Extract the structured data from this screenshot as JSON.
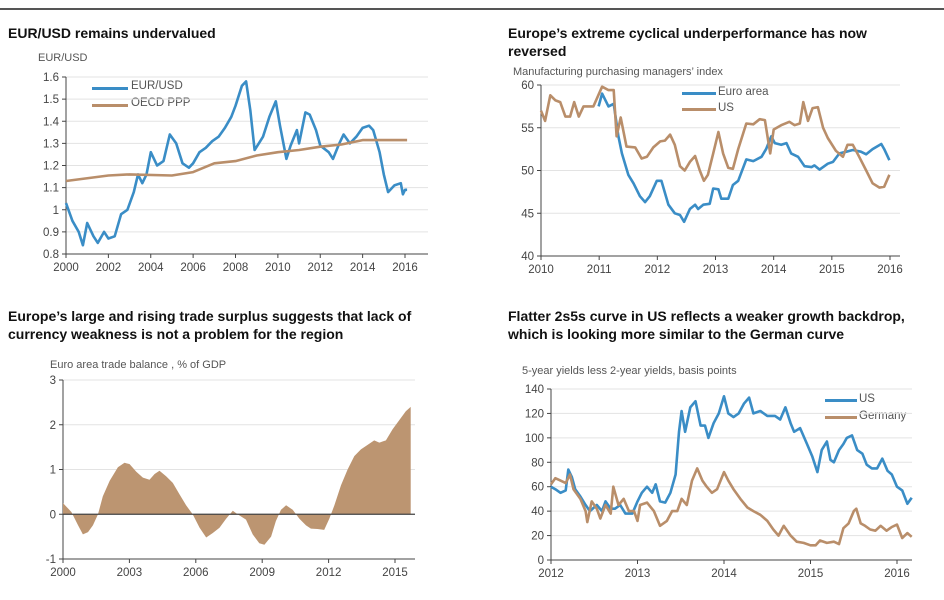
{
  "colors": {
    "blue": "#3a8dc6",
    "tan": "#b98e6a",
    "area": "#bc9571",
    "grid": "#e3e3e3",
    "axis": "#444"
  },
  "charts": {
    "c1": {
      "title": "EUR/USD remains undervalued",
      "ylabel": "EUR/USD"
    },
    "c2": {
      "title_line1": "Europe’s extreme cyclical underperformance has now",
      "title_line2": "reversed",
      "subtitle": "Manufacturing purchasing managers’ index"
    },
    "c3": {
      "title_line1": "Europe’s large and rising trade surplus suggests that lack of",
      "title_line2": "currency weakness is not a problem for the region",
      "subtitle": "Euro area trade balance , % of GDP"
    },
    "c4": {
      "title_line1": "Flatter 2s5s curve in US reflects a weaker growth backdrop,",
      "title_line2": "which is looking more similar to the German curve",
      "subtitle": "5-year yields less 2-year yields, basis points"
    }
  },
  "chart_data": [
    {
      "type": "line",
      "title": "EUR/USD remains undervalued",
      "ylabel": "EUR/USD",
      "xlim": [
        2000,
        2016
      ],
      "ylim": [
        0.8,
        1.6
      ],
      "xticks": [
        2000,
        2002,
        2004,
        2006,
        2008,
        2010,
        2012,
        2014,
        2016
      ],
      "yticks": [
        0.8,
        0.9,
        1,
        1.1,
        1.2,
        1.3,
        1.4,
        1.5,
        1.6
      ],
      "grid": true,
      "legend": "top-left",
      "series": [
        {
          "name": "EUR/USD",
          "color": "#3a8dc6",
          "x": [
            2000,
            2000.3,
            2000.6,
            2000.8,
            2001.0,
            2001.3,
            2001.5,
            2001.8,
            2002.0,
            2002.3,
            2002.6,
            2002.9,
            2003.2,
            2003.4,
            2003.6,
            2003.8,
            2004.0,
            2004.3,
            2004.6,
            2004.9,
            2005.2,
            2005.5,
            2005.8,
            2006.0,
            2006.3,
            2006.6,
            2006.9,
            2007.2,
            2007.5,
            2007.8,
            2008.0,
            2008.3,
            2008.5,
            2008.7,
            2008.9,
            2009.1,
            2009.3,
            2009.6,
            2009.9,
            2010.1,
            2010.4,
            2010.6,
            2010.9,
            2011.0,
            2011.3,
            2011.5,
            2011.8,
            2012.0,
            2012.4,
            2012.6,
            2012.9,
            2013.1,
            2013.4,
            2013.7,
            2014.0,
            2014.3,
            2014.5,
            2014.8,
            2015.0,
            2015.2,
            2015.5,
            2015.8,
            2015.9,
            2016.0,
            2016.1
          ],
          "y": [
            1.03,
            0.95,
            0.9,
            0.84,
            0.94,
            0.88,
            0.85,
            0.9,
            0.87,
            0.88,
            0.98,
            1.0,
            1.08,
            1.16,
            1.12,
            1.16,
            1.26,
            1.2,
            1.22,
            1.34,
            1.3,
            1.21,
            1.19,
            1.21,
            1.26,
            1.28,
            1.31,
            1.33,
            1.37,
            1.42,
            1.47,
            1.56,
            1.58,
            1.45,
            1.27,
            1.3,
            1.33,
            1.42,
            1.49,
            1.38,
            1.23,
            1.29,
            1.36,
            1.3,
            1.44,
            1.43,
            1.36,
            1.29,
            1.26,
            1.23,
            1.3,
            1.34,
            1.3,
            1.33,
            1.37,
            1.38,
            1.36,
            1.26,
            1.16,
            1.08,
            1.11,
            1.12,
            1.07,
            1.09,
            1.09
          ]
        },
        {
          "name": "OECD PPP",
          "color": "#b98e6a",
          "x": [
            2000,
            2002,
            2003,
            2005,
            2006,
            2007,
            2008,
            2009,
            2010,
            2011,
            2012,
            2013,
            2014,
            2016.1
          ],
          "y": [
            1.13,
            1.155,
            1.16,
            1.155,
            1.17,
            1.21,
            1.22,
            1.245,
            1.26,
            1.27,
            1.285,
            1.295,
            1.315,
            1.315
          ]
        }
      ]
    },
    {
      "type": "line",
      "title": "Europe’s extreme cyclical underperformance has now reversed",
      "subtitle": "Manufacturing purchasing managers’ index",
      "xlim": [
        2010,
        2016
      ],
      "ylim": [
        40,
        60
      ],
      "xticks": [
        2010,
        2011,
        2012,
        2013,
        2014,
        2015,
        2016
      ],
      "yticks": [
        40,
        45,
        50,
        55,
        60
      ],
      "grid": true,
      "legend": "top-center",
      "series": [
        {
          "name": "Euro area",
          "color": "#3a8dc6",
          "x": [
            2010.99,
            2011.05,
            2011.16,
            2011.25,
            2011.33,
            2011.39,
            2011.5,
            2011.59,
            2011.7,
            2011.79,
            2011.87,
            2011.99,
            2012.07,
            2012.19,
            2012.3,
            2012.39,
            2012.46,
            2012.56,
            2012.65,
            2012.7,
            2012.79,
            2012.9,
            2012.96,
            2013.05,
            2013.1,
            2013.22,
            2013.3,
            2013.39,
            2013.53,
            2013.65,
            2013.79,
            2013.87,
            2013.96,
            2014.02,
            2014.13,
            2014.22,
            2014.3,
            2014.42,
            2014.53,
            2014.65,
            2014.7,
            2014.79,
            2014.93,
            2015.02,
            2015.13,
            2015.25,
            2015.36,
            2015.5,
            2015.59,
            2015.7,
            2015.85,
            2015.9,
            2015.99
          ],
          "y": [
            57.5,
            59,
            57.5,
            57.8,
            54,
            52,
            49.5,
            48.5,
            47,
            46.3,
            47,
            48.8,
            48.8,
            46,
            45,
            44.8,
            44,
            45.5,
            46,
            45.5,
            46,
            46.1,
            47.9,
            47.8,
            46.7,
            46.7,
            48.3,
            48.8,
            51.3,
            51.1,
            51.6,
            52.5,
            54,
            53.2,
            53,
            53.2,
            52,
            51.6,
            50.5,
            50.4,
            50.6,
            50.1,
            50.8,
            51,
            52,
            52.2,
            52.4,
            52.2,
            51.9,
            52.5,
            53.1,
            52.5,
            51.2
          ]
        },
        {
          "name": "US",
          "color": "#b98e6a",
          "x": [
            2010,
            2010.07,
            2010.16,
            2010.25,
            2010.33,
            2010.42,
            2010.5,
            2010.57,
            2010.65,
            2010.73,
            2010.9,
            2011.05,
            2011.16,
            2011.25,
            2011.3,
            2011.37,
            2011.47,
            2011.62,
            2011.73,
            2011.82,
            2011.93,
            2012.05,
            2012.13,
            2012.22,
            2012.3,
            2012.39,
            2012.47,
            2012.56,
            2012.65,
            2012.73,
            2012.8,
            2012.87,
            2012.96,
            2013.05,
            2013.13,
            2013.22,
            2013.3,
            2013.39,
            2013.53,
            2013.65,
            2013.76,
            2013.85,
            2013.94,
            2014.0,
            2014.13,
            2014.27,
            2014.36,
            2014.45,
            2014.51,
            2014.59,
            2014.67,
            2014.76,
            2014.85,
            2014.93,
            2015.07,
            2015.19,
            2015.27,
            2015.36,
            2015.47,
            2015.59,
            2015.7,
            2015.82,
            2015.9,
            2015.99
          ],
          "y": [
            57,
            55.8,
            58.8,
            58.2,
            58,
            56.3,
            56.3,
            58,
            56.3,
            57.5,
            57.5,
            59.8,
            59.4,
            59.4,
            54,
            56.2,
            52.8,
            52.7,
            51.4,
            51.6,
            52.7,
            53.4,
            53.5,
            54.2,
            53,
            50.5,
            50,
            51,
            51.7,
            50,
            48.8,
            49.5,
            52,
            54.5,
            52,
            50.3,
            50.2,
            52.5,
            55.5,
            55.4,
            56,
            55.9,
            52,
            54.8,
            55.3,
            55.7,
            55.3,
            55.5,
            58,
            55.8,
            57.3,
            57.4,
            55,
            53.8,
            52.3,
            51.6,
            53,
            53,
            51.6,
            50,
            48.5,
            48,
            48.1,
            49.5
          ]
        }
      ]
    },
    {
      "type": "area",
      "title": "Europe’s large and rising trade surplus suggests that lack of currency weakness is not a problem for the region",
      "subtitle": "Euro area trade balance , % of GDP",
      "xlim": [
        2000,
        2016
      ],
      "ylim": [
        -1,
        3
      ],
      "xticks": [
        2000,
        2003,
        2006,
        2009,
        2012,
        2015
      ],
      "yticks": [
        -1,
        0,
        1,
        2,
        3
      ],
      "grid": true,
      "series": [
        {
          "color": "#bc9571",
          "x": [
            2000,
            2000.38,
            2000.68,
            2000.9,
            2001.13,
            2001.35,
            2001.58,
            2001.8,
            2002.11,
            2002.48,
            2002.78,
            2003.01,
            2003.31,
            2003.61,
            2003.91,
            2004.14,
            2004.36,
            2004.66,
            2004.96,
            2005.26,
            2005.56,
            2005.86,
            2006.17,
            2006.47,
            2006.77,
            2007.07,
            2007.37,
            2007.67,
            2007.89,
            2008.27,
            2008.57,
            2008.87,
            2009.1,
            2009.4,
            2009.62,
            2009.85,
            2010.08,
            2010.38,
            2010.68,
            2010.98,
            2011.2,
            2011.5,
            2011.8,
            2012.03,
            2012.26,
            2012.56,
            2012.86,
            2013.16,
            2013.46,
            2013.76,
            2014.06,
            2014.29,
            2014.59,
            2014.89,
            2015.19,
            2015.49,
            2015.71
          ],
          "y": [
            0.25,
            0.05,
            -0.25,
            -0.45,
            -0.4,
            -0.25,
            0,
            0.4,
            0.75,
            1.05,
            1.15,
            1.12,
            0.95,
            0.82,
            0.77,
            0.9,
            0.97,
            0.85,
            0.7,
            0.45,
            0.2,
            0,
            -0.3,
            -0.52,
            -0.42,
            -0.3,
            -0.1,
            0.08,
            0,
            -0.12,
            -0.45,
            -0.65,
            -0.68,
            -0.5,
            -0.15,
            0.1,
            0.2,
            0.1,
            -0.1,
            -0.25,
            -0.32,
            -0.33,
            -0.35,
            -0.1,
            0.2,
            0.65,
            1.0,
            1.3,
            1.45,
            1.55,
            1.65,
            1.6,
            1.65,
            1.9,
            2.1,
            2.3,
            2.4
          ]
        }
      ]
    },
    {
      "type": "line",
      "title": "Flatter 2s5s curve in US reflects a weaker growth backdrop, which is looking more similar to the German curve",
      "subtitle": "5-year yields less 2-year yields, basis points",
      "xlim": [
        2012,
        2016.2
      ],
      "ylim": [
        0,
        140
      ],
      "xticks": [
        2012,
        2013,
        2014,
        2015,
        2016
      ],
      "yticks": [
        0,
        20,
        40,
        60,
        80,
        100,
        120,
        140
      ],
      "grid": true,
      "legend": "top-right",
      "series": [
        {
          "name": "US",
          "color": "#3a8dc6",
          "x": [
            2012,
            2012.05,
            2012.11,
            2012.17,
            2012.2,
            2012.24,
            2012.28,
            2012.34,
            2012.4,
            2012.45,
            2012.53,
            2012.59,
            2012.63,
            2012.69,
            2012.74,
            2012.8,
            2012.86,
            2012.94,
            2013,
            2013.05,
            2013.11,
            2013.17,
            2013.21,
            2013.26,
            2013.32,
            2013.38,
            2013.44,
            2013.48,
            2013.51,
            2013.55,
            2013.61,
            2013.67,
            2013.73,
            2013.78,
            2013.82,
            2013.88,
            2013.94,
            2014,
            2014.05,
            2014.11,
            2014.17,
            2014.23,
            2014.29,
            2014.34,
            2014.42,
            2014.5,
            2014.59,
            2014.65,
            2014.71,
            2014.77,
            2014.81,
            2014.88,
            2014.96,
            2015.02,
            2015.08,
            2015.13,
            2015.19,
            2015.23,
            2015.27,
            2015.33,
            2015.38,
            2015.42,
            2015.48,
            2015.54,
            2015.6,
            2015.65,
            2015.71,
            2015.77,
            2015.83,
            2015.89,
            2015.94,
            2016,
            2016.06,
            2016.12,
            2016.17
          ],
          "y": [
            60,
            58,
            55,
            57,
            74,
            68,
            58,
            52,
            45,
            40,
            45,
            40,
            48,
            42,
            42,
            45,
            38,
            38,
            48,
            55,
            60,
            55,
            62,
            48,
            47,
            55,
            70,
            105,
            122,
            105,
            125,
            130,
            110,
            110,
            100,
            112,
            120,
            134,
            120,
            117,
            120,
            128,
            133,
            120,
            122,
            118,
            118,
            115,
            125,
            112,
            105,
            108,
            95,
            85,
            72,
            90,
            97,
            82,
            80,
            90,
            95,
            100,
            102,
            90,
            87,
            78,
            75,
            75,
            83,
            73,
            70,
            60,
            57,
            46,
            51
          ]
        },
        {
          "name": "Germany",
          "color": "#b98e6a",
          "x": [
            2012,
            2012.05,
            2012.11,
            2012.17,
            2012.22,
            2012.26,
            2012.34,
            2012.4,
            2012.42,
            2012.47,
            2012.53,
            2012.57,
            2012.63,
            2012.69,
            2012.72,
            2012.78,
            2012.84,
            2012.9,
            2012.96,
            2013,
            2013.03,
            2013.11,
            2013.19,
            2013.26,
            2013.34,
            2013.4,
            2013.46,
            2013.51,
            2013.57,
            2013.63,
            2013.69,
            2013.75,
            2013.8,
            2013.86,
            2013.92,
            2014,
            2014.05,
            2014.11,
            2014.19,
            2014.27,
            2014.34,
            2014.42,
            2014.5,
            2014.57,
            2014.63,
            2014.69,
            2014.77,
            2014.84,
            2014.92,
            2015,
            2015.06,
            2015.11,
            2015.19,
            2015.27,
            2015.33,
            2015.38,
            2015.44,
            2015.5,
            2015.53,
            2015.58,
            2015.63,
            2015.69,
            2015.75,
            2015.81,
            2015.88,
            2015.94,
            2016,
            2016.06,
            2016.12,
            2016.17
          ],
          "y": [
            62,
            67,
            65,
            63,
            70,
            58,
            50,
            40,
            31,
            48,
            42,
            34,
            45,
            38,
            60,
            45,
            50,
            40,
            40,
            32,
            45,
            47,
            40,
            28,
            32,
            40,
            40,
            50,
            45,
            65,
            75,
            65,
            60,
            55,
            58,
            72,
            65,
            58,
            50,
            43,
            40,
            37,
            32,
            25,
            20,
            28,
            20,
            15,
            14,
            12,
            12,
            16,
            14,
            15,
            13,
            26,
            30,
            40,
            42,
            30,
            28,
            25,
            24,
            28,
            24,
            27,
            29,
            18,
            22,
            19
          ]
        }
      ]
    }
  ]
}
